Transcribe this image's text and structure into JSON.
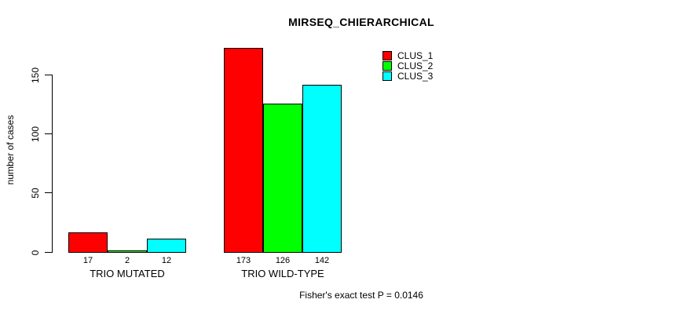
{
  "page": {
    "background": "#ffffff"
  },
  "chart_data": {
    "type": "bar",
    "title": "MIRSEQ_CHIERARCHICAL",
    "categories": [
      "TRIO MUTATED",
      "TRIO WILD-TYPE"
    ],
    "series": [
      {
        "name": "CLUS_1",
        "color": "#ff0000",
        "values": [
          17,
          173
        ]
      },
      {
        "name": "CLUS_2",
        "color": "#00ff00",
        "values": [
          2,
          126
        ]
      },
      {
        "name": "CLUS_3",
        "color": "#00ffff",
        "values": [
          12,
          142
        ]
      }
    ],
    "xlabel": "",
    "ylabel": "number of cases",
    "yticks": [
      0,
      50,
      100,
      150
    ],
    "ylim": [
      0,
      180
    ],
    "grid": false,
    "value_labels_shown": true,
    "legend": {
      "position": "top-right",
      "entries": [
        "CLUS_1",
        "CLUS_2",
        "CLUS_3"
      ]
    },
    "annotation": "Fisher's exact test P = 0.0146",
    "axis_color": "#000000",
    "bar_border_color": "#000000"
  }
}
